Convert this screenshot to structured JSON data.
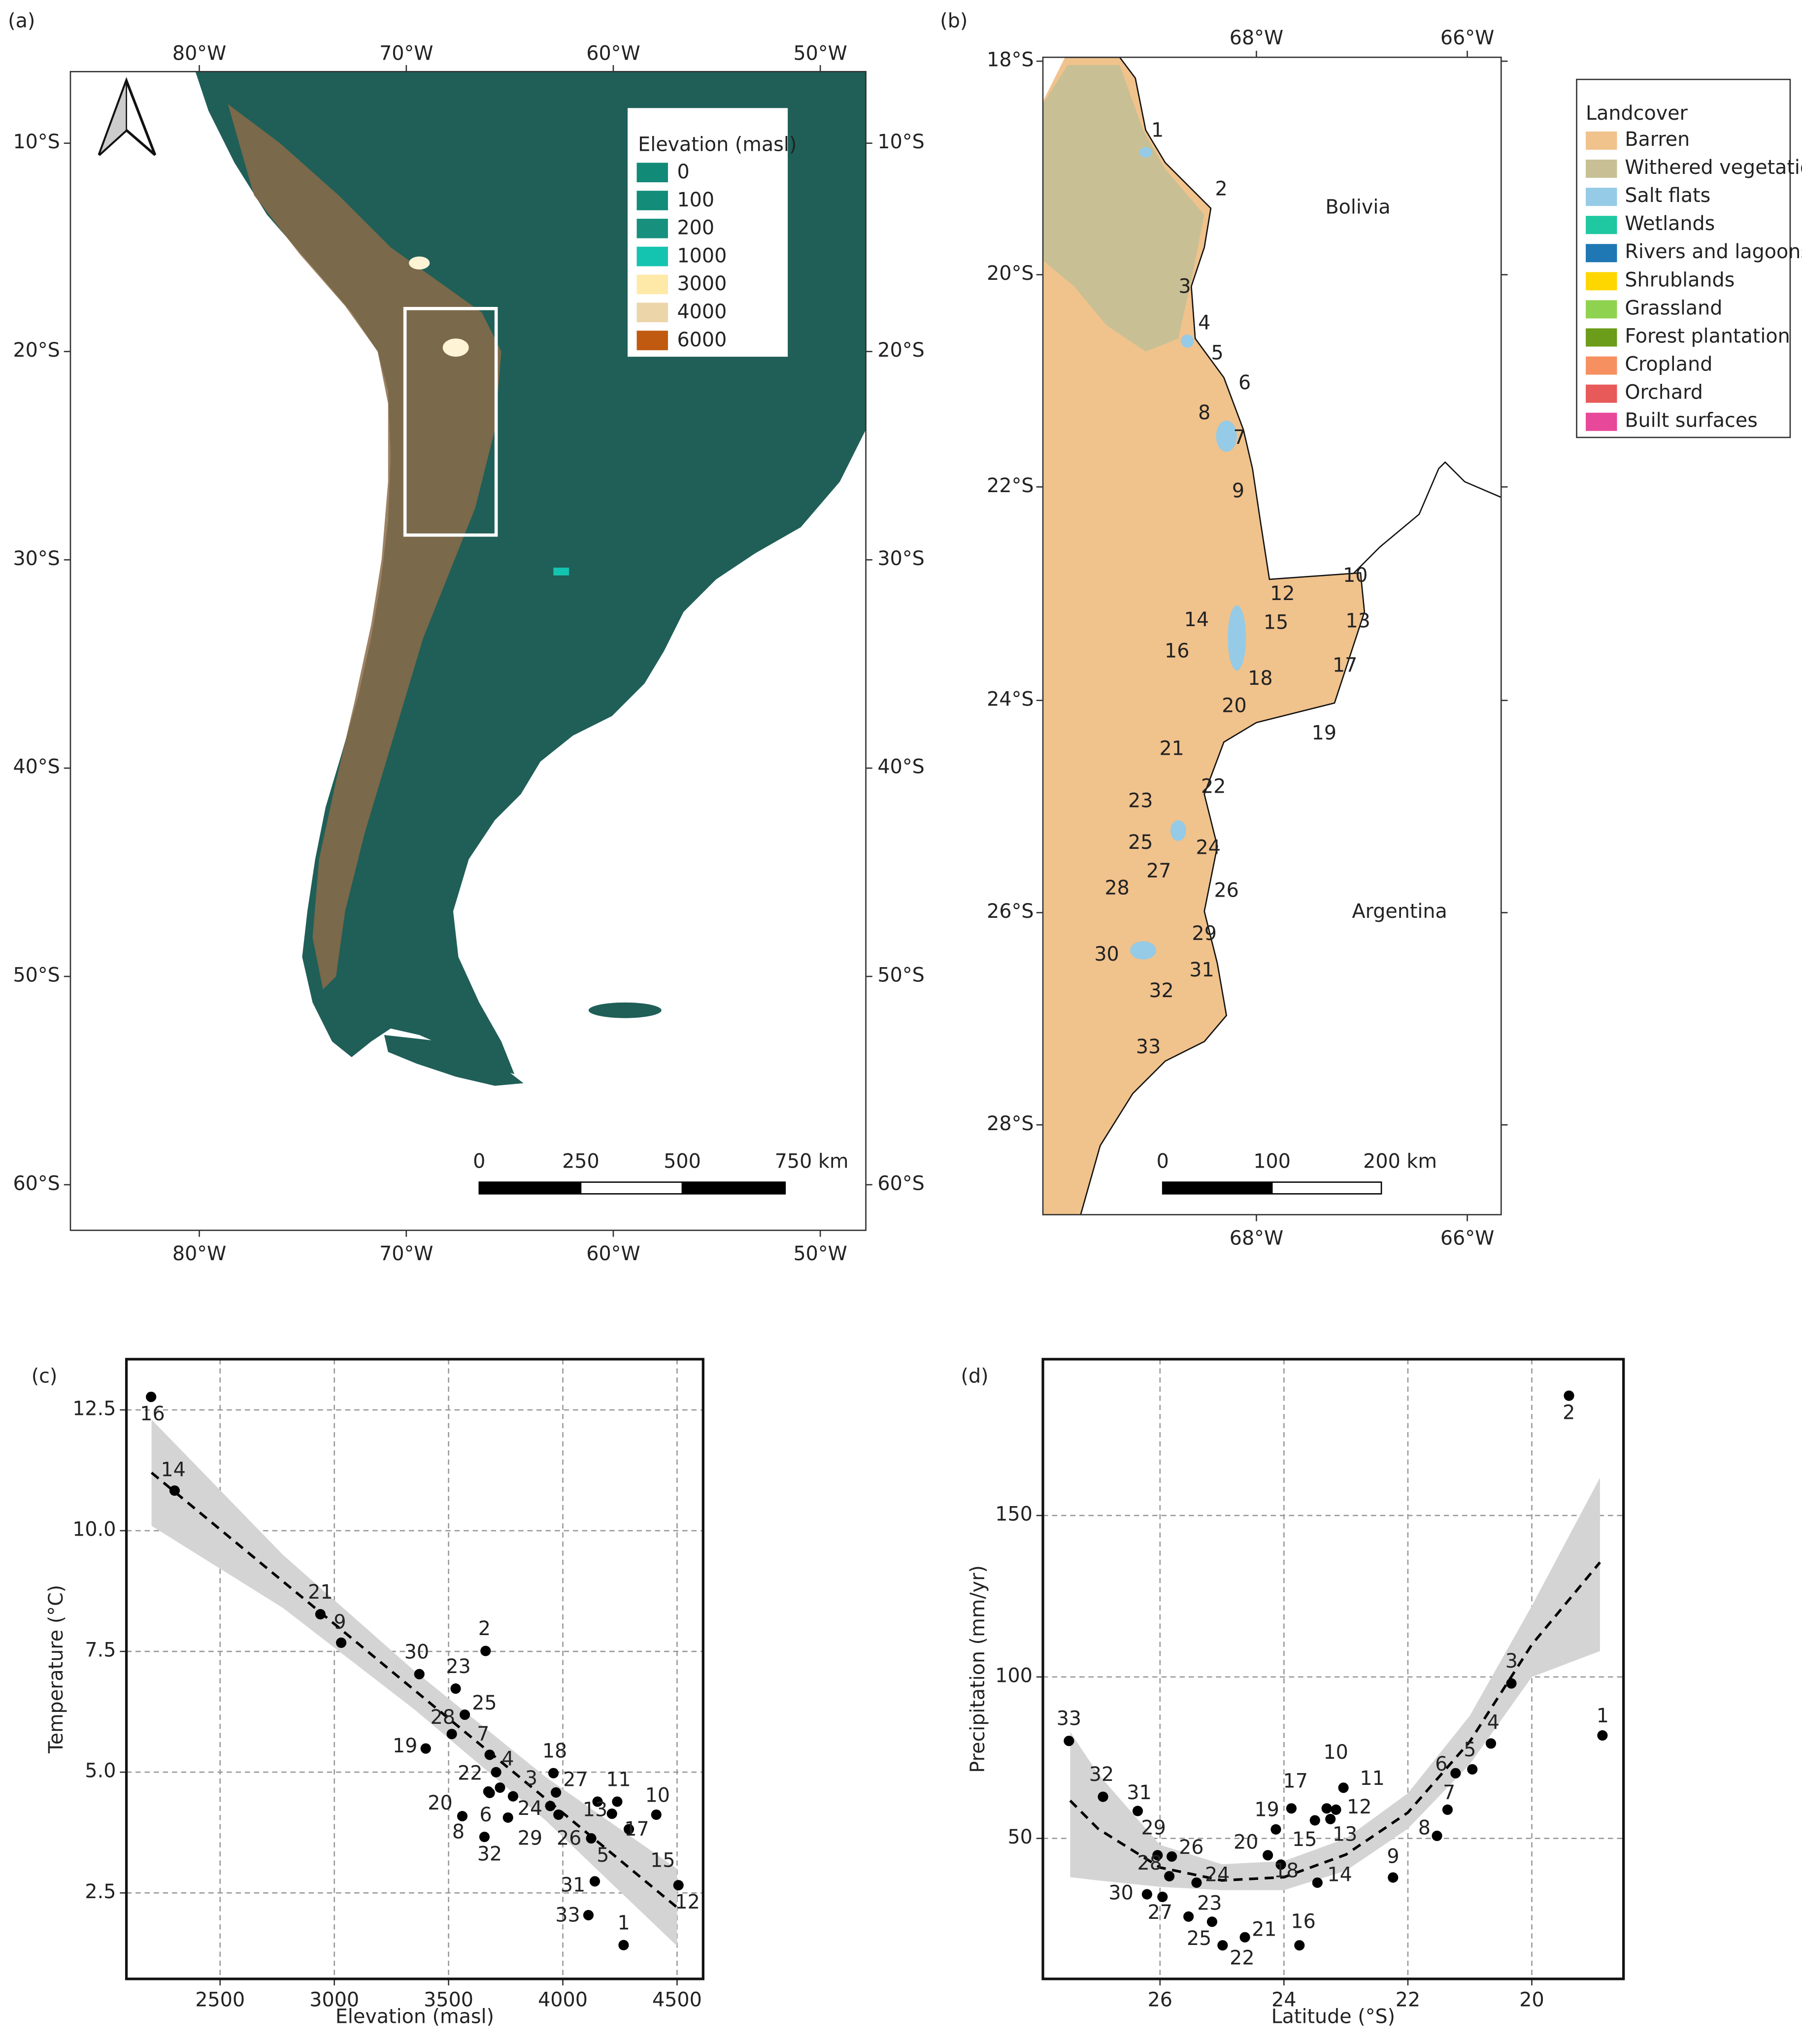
{
  "chart_data": [
    {
      "type": "scatter",
      "panel": "(c)",
      "x_label": "Elevation (masl)",
      "y_label": "Temperature (°C)",
      "labels": [
        "1",
        "2",
        "3",
        "4",
        "5",
        "6",
        "7",
        "8",
        "9",
        "10",
        "11",
        "12",
        "13",
        "14",
        "15",
        "16",
        "17",
        "18",
        "19",
        "20",
        "21",
        "22",
        "23",
        "24",
        "25",
        "26",
        "27",
        "28",
        "29",
        "30",
        "31",
        "32",
        "33"
      ],
      "x": [
        4266,
        3662,
        3782,
        3708,
        4124,
        3725,
        3680,
        3680,
        3030,
        4409,
        4238,
        4506,
        4152,
        2301,
        4215,
        2198,
        4289,
        3959,
        3400,
        3560,
        2939,
        3674,
        3531,
        3945,
        3571,
        3981,
        3970,
        3514,
        3760,
        3372,
        4140,
        3657,
        4112
      ],
      "values": [
        1.42,
        7.51,
        4.5,
        5.0,
        3.63,
        4.68,
        5.36,
        4.57,
        7.68,
        4.12,
        4.39,
        2.66,
        4.39,
        10.83,
        4.14,
        12.77,
        3.82,
        4.98,
        5.49,
        4.09,
        8.27,
        4.6,
        6.73,
        4.3,
        6.19,
        4.12,
        4.58,
        5.79,
        4.06,
        7.03,
        2.74,
        3.66,
        2.04
      ],
      "color": "#000000",
      "fit": {
        "x": [
          2200,
          2775,
          3350,
          3925,
          4500
        ],
        "values": [
          11.2,
          8.95,
          6.7,
          4.45,
          2.2
        ],
        "lower": [
          10.1,
          8.4,
          6.3,
          4.0,
          1.4
        ],
        "upper": [
          12.3,
          9.5,
          7.1,
          4.9,
          3.0
        ],
        "color": "#000000",
        "band_color": "#d4d4d4"
      },
      "xlim": [
        2090,
        4614
      ],
      "ylim": [
        0.72,
        13.55
      ],
      "xticks": [
        2500,
        3000,
        3500,
        4000,
        4500
      ],
      "yticks": [
        2.5,
        {
          "value": 5,
          "label": "5.0"
        },
        7.5,
        {
          "value": 10,
          "label": "10.0"
        },
        12.5
      ],
      "grid": true
    },
    {
      "type": "scatter",
      "panel": "(d)",
      "x_label": "Latitude (°S)",
      "y_label": "Precipitation (mm/yr)",
      "labels": [
        "1",
        "2",
        "3",
        "4",
        "5",
        "6",
        "7",
        "8",
        "9",
        "10",
        "11",
        "12",
        "13",
        "14",
        "15",
        "16",
        "17",
        "18",
        "19",
        "20",
        "21",
        "22",
        "23",
        "24",
        "25",
        "26",
        "27",
        "28",
        "29",
        "30",
        "31",
        "32",
        "33"
      ],
      "x": [
        18.86,
        19.4,
        20.33,
        20.66,
        20.96,
        21.23,
        21.36,
        21.53,
        22.24,
        23.31,
        23.04,
        23.16,
        23.25,
        23.46,
        23.5,
        23.75,
        23.88,
        24.05,
        24.13,
        24.26,
        24.63,
        24.99,
        25.16,
        25.41,
        25.54,
        25.81,
        25.96,
        25.85,
        26.04,
        26.21,
        26.36,
        26.92,
        27.47
      ],
      "values": [
        81.9,
        187.1,
        98.0,
        79.4,
        71.4,
        70.2,
        58.9,
        50.8,
        37.9,
        59.3,
        65.7,
        58.9,
        56.0,
        36.3,
        55.6,
        16.9,
        59.3,
        41.9,
        52.8,
        44.8,
        19.4,
        16.9,
        24.2,
        36.3,
        25.8,
        44.4,
        31.9,
        38.3,
        44.8,
        32.7,
        58.5,
        62.9,
        80.2
      ],
      "color": "#000000",
      "fit": {
        "x": [
          27.45,
          27,
          26,
          25,
          24,
          23,
          22,
          21,
          20,
          18.9
        ],
        "values": [
          61.7,
          53,
          41,
          37,
          38,
          45,
          58,
          80,
          110,
          135.5
        ],
        "lower": [
          38,
          37,
          35,
          34,
          34,
          40,
          53,
          73,
          100,
          108
        ],
        "upper": [
          83,
          70,
          48,
          42,
          43,
          50,
          64,
          88,
          122,
          161.7
        ],
        "color": "#000000",
        "band_color": "#d4d4d4"
      },
      "xlim": [
        27.89,
        18.52
      ],
      "ylim": [
        6.5,
        198.4
      ],
      "xticks": [
        26,
        24,
        22,
        20
      ],
      "yticks": [
        50,
        100,
        150
      ],
      "grid": true
    }
  ],
  "maps": [
    {
      "panel": "(a)",
      "lon_ticks": [
        "80°W",
        "70°W",
        "60°W",
        "50°W"
      ],
      "lat_ticks": [
        "10°S",
        "20°S",
        "30°S",
        "40°S",
        "50°S",
        "60°S"
      ],
      "legend": {
        "title": "Elevation (masl)",
        "entries": [
          {
            "label": "0",
            "color": "#128a78"
          },
          {
            "label": "100",
            "color": "#138c7a"
          },
          {
            "label": "200",
            "color": "#17917e"
          },
          {
            "label": "1000",
            "color": "#15c4b0"
          },
          {
            "label": "3000",
            "color": "#ffe9a8"
          },
          {
            "label": "4000",
            "color": "#ecd5a8"
          },
          {
            "label": "6000",
            "color": "#c05a10"
          }
        ]
      },
      "scale_labels": [
        "0",
        "250",
        "500",
        "750 km"
      ]
    },
    {
      "panel": "(b)",
      "lon_ticks": [
        "68°W",
        "66°W"
      ],
      "lat_ticks": [
        "18°S",
        "20°S",
        "22°S",
        "24°S",
        "26°S",
        "28°S"
      ],
      "legend": {
        "title": "Landcover",
        "entries": [
          {
            "label": "Barren",
            "color": "#f0c28c"
          },
          {
            "label": "Withered vegetation",
            "color": "#c8c094"
          },
          {
            "label": "Salt flats",
            "color": "#95cbe6"
          },
          {
            "label": "Wetlands",
            "color": "#1fc8a0"
          },
          {
            "label": "Rivers and lagoons",
            "color": "#1f78b4"
          },
          {
            "label": "Shrublands",
            "color": "#ffd700"
          },
          {
            "label": "Grassland",
            "color": "#8fd24f"
          },
          {
            "label": "Forest plantation",
            "color": "#6b9c1a"
          },
          {
            "label": "Cropland",
            "color": "#f79060"
          },
          {
            "label": "Orchard",
            "color": "#e85a5a"
          },
          {
            "label": "Built surfaces",
            "color": "#e8489a"
          }
        ]
      },
      "sites": [
        "1",
        "2",
        "3",
        "4",
        "5",
        "6",
        "7",
        "8",
        "9",
        "10",
        "12",
        "13",
        "14",
        "15",
        "16",
        "17",
        "18",
        "19",
        "20",
        "21",
        "22",
        "23",
        "24",
        "25",
        "26",
        "27",
        "28",
        "29",
        "30",
        "31",
        "32",
        "33"
      ],
      "countries": [
        "Bolivia",
        "Argentina"
      ],
      "scale_labels": [
        "0",
        "100",
        "200 km"
      ]
    }
  ]
}
